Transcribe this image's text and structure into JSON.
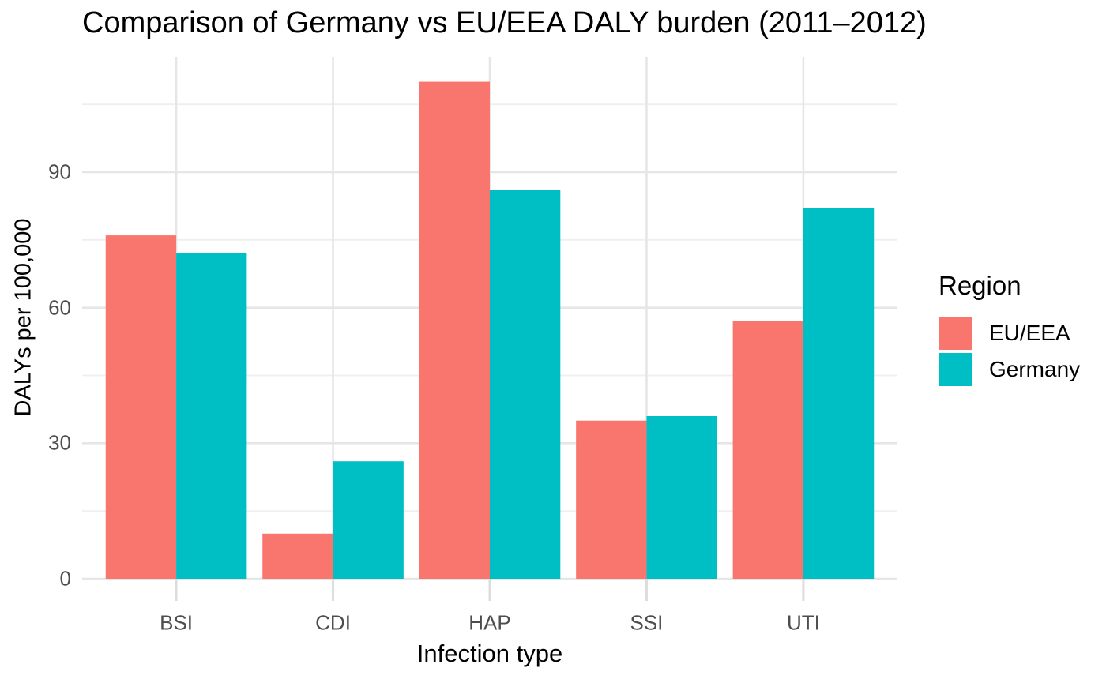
{
  "chart_data": {
    "type": "bar",
    "title": "Comparison of Germany vs EU/EEA DALY burden (2011–2012)",
    "xlabel": "Infection type",
    "ylabel": "DALYs per 100,000",
    "categories": [
      "BSI",
      "CDI",
      "HAP",
      "SSI",
      "UTI"
    ],
    "series": [
      {
        "name": "EU/EEA",
        "color": "#F8766D",
        "values": [
          76,
          10,
          110,
          35,
          57
        ]
      },
      {
        "name": "Germany",
        "color": "#00BFC4",
        "values": [
          72,
          26,
          86,
          36,
          82
        ]
      }
    ],
    "ylim": [
      0,
      115.5
    ],
    "yticks": [
      0,
      30,
      60,
      90
    ],
    "yticks_minor": [
      15,
      45,
      75,
      105
    ],
    "grid": true,
    "legend": {
      "title": "Region",
      "position": "right",
      "entries": [
        "EU/EEA",
        "Germany"
      ]
    }
  },
  "colors": {
    "background": "#FFFFFF",
    "grid_major": "#E6E6E6",
    "grid_minor": "#EFEFEF",
    "axis_tick": "#DDDDDD",
    "axis_text": "#4D4D4D",
    "title_text": "#000000",
    "series_eu_eea": "#F8766D",
    "series_germany": "#00BFC4"
  }
}
